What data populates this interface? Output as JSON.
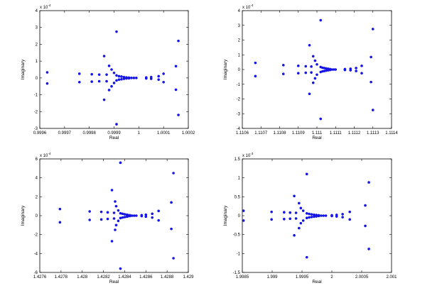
{
  "chart_data": [
    {
      "type": "scatter",
      "xlabel": "Real",
      "ylabel": "Imaginary",
      "y_multiplier": "x 10^-4",
      "xlim": [
        0.9996,
        1.0002
      ],
      "ylim": [
        -3,
        4
      ],
      "xticks": [
        "0.9996",
        "0.9997",
        "0.9998",
        "0.9999",
        "1",
        "1.0001",
        "1.0002"
      ],
      "yticks": [
        "-3",
        "-2",
        "-1",
        "0",
        "1",
        "2",
        "3",
        "4"
      ],
      "x_tick_values": [
        0.9996,
        0.9997,
        0.9998,
        0.9999,
        1.0,
        1.0001,
        1.0002
      ],
      "y_tick_values": [
        -3,
        -2,
        -1,
        0,
        1,
        2,
        3,
        4
      ],
      "points": [
        [
          0.99963,
          0.33
        ],
        [
          0.99963,
          -0.33
        ],
        [
          0.99976,
          0.25
        ],
        [
          0.99976,
          -0.25
        ],
        [
          0.99981,
          0.22
        ],
        [
          0.99981,
          -0.22
        ],
        [
          0.99984,
          0.2
        ],
        [
          0.99984,
          -0.2
        ],
        [
          0.99986,
          1.3
        ],
        [
          0.99986,
          -1.3
        ],
        [
          0.99987,
          0.2
        ],
        [
          0.99987,
          -0.2
        ],
        [
          0.99988,
          0.72
        ],
        [
          0.99988,
          -0.72
        ],
        [
          0.99989,
          0.5
        ],
        [
          0.99989,
          -0.5
        ],
        [
          0.9999,
          0.3
        ],
        [
          0.9999,
          -0.3
        ],
        [
          0.99991,
          2.75
        ],
        [
          0.99991,
          -2.75
        ],
        [
          0.99991,
          0.15
        ],
        [
          0.99991,
          -0.15
        ],
        [
          0.99992,
          0.1
        ],
        [
          0.99992,
          -0.1
        ],
        [
          0.99993,
          0.08
        ],
        [
          0.99993,
          -0.08
        ],
        [
          0.99994,
          0.05
        ],
        [
          0.99994,
          -0.05
        ],
        [
          0.99995,
          0.03
        ],
        [
          0.99995,
          -0.03
        ],
        [
          0.99996,
          0.02
        ],
        [
          0.99996,
          -0.02
        ],
        [
          0.99997,
          0.0
        ],
        [
          0.99998,
          0.0
        ],
        [
          0.99999,
          0.0
        ],
        [
          1.00003,
          0.03
        ],
        [
          1.00003,
          -0.03
        ],
        [
          1.00005,
          0.05
        ],
        [
          1.00005,
          -0.05
        ],
        [
          1.00008,
          0.1
        ],
        [
          1.00008,
          -0.1
        ],
        [
          1.0001,
          0.25
        ],
        [
          1.0001,
          -0.25
        ],
        [
          1.00015,
          0.7
        ],
        [
          1.00015,
          -0.7
        ],
        [
          1.00016,
          2.2
        ],
        [
          1.00016,
          -2.2
        ]
      ]
    },
    {
      "type": "scatter",
      "xlabel": "Real",
      "ylabel": "Imaginary",
      "y_multiplier": "x 10^-4",
      "xlim": [
        1.1106,
        1.1114
      ],
      "ylim": [
        -4,
        4
      ],
      "xticks": [
        "1.1106",
        "1.1107",
        "1.1108",
        "1.1109",
        "1.111",
        "1.1111",
        "1.1112",
        "1.1113",
        "1.1114"
      ],
      "yticks": [
        "-4",
        "-3",
        "-2",
        "-1",
        "0",
        "1",
        "2",
        "3",
        "4"
      ],
      "x_tick_values": [
        1.1106,
        1.1107,
        1.1108,
        1.1109,
        1.111,
        1.1111,
        1.1112,
        1.1113,
        1.1114
      ],
      "y_tick_values": [
        -4,
        -3,
        -2,
        -1,
        0,
        1,
        2,
        3,
        4
      ],
      "points": [
        [
          1.11067,
          0.45
        ],
        [
          1.11067,
          -0.45
        ],
        [
          1.11082,
          0.3
        ],
        [
          1.11082,
          -0.3
        ],
        [
          1.1109,
          0.25
        ],
        [
          1.1109,
          -0.25
        ],
        [
          1.11094,
          0.22
        ],
        [
          1.11094,
          -0.22
        ],
        [
          1.11096,
          1.65
        ],
        [
          1.11096,
          -1.65
        ],
        [
          1.11097,
          0.2
        ],
        [
          1.11097,
          -0.2
        ],
        [
          1.11098,
          0.9
        ],
        [
          1.11098,
          -0.9
        ],
        [
          1.11099,
          0.6
        ],
        [
          1.11099,
          -0.6
        ],
        [
          1.111,
          0.35
        ],
        [
          1.111,
          -0.35
        ],
        [
          1.11102,
          3.35
        ],
        [
          1.11102,
          -3.35
        ],
        [
          1.11102,
          0.17
        ],
        [
          1.11102,
          -0.17
        ],
        [
          1.11103,
          0.12
        ],
        [
          1.11103,
          -0.12
        ],
        [
          1.11104,
          0.1
        ],
        [
          1.11104,
          -0.1
        ],
        [
          1.11105,
          0.07
        ],
        [
          1.11105,
          -0.07
        ],
        [
          1.11106,
          0.05
        ],
        [
          1.11106,
          -0.05
        ],
        [
          1.11107,
          0.03
        ],
        [
          1.11107,
          -0.03
        ],
        [
          1.11108,
          0.0
        ],
        [
          1.11109,
          0.0
        ],
        [
          1.1111,
          0.0
        ],
        [
          1.11115,
          0.03
        ],
        [
          1.11115,
          -0.03
        ],
        [
          1.11118,
          0.05
        ],
        [
          1.11118,
          -0.05
        ],
        [
          1.11121,
          0.1
        ],
        [
          1.11121,
          -0.1
        ],
        [
          1.11124,
          0.25
        ],
        [
          1.11124,
          -0.25
        ],
        [
          1.11129,
          0.85
        ],
        [
          1.11129,
          -0.85
        ],
        [
          1.1113,
          2.75
        ],
        [
          1.1113,
          -2.75
        ]
      ]
    },
    {
      "type": "scatter",
      "xlabel": "Real",
      "ylabel": "Imaginary",
      "y_multiplier": "x 10^-4",
      "xlim": [
        1.4276,
        1.429
      ],
      "ylim": [
        -6,
        6
      ],
      "xticks": [
        "1.4276",
        "1.4278",
        "1.428",
        "1.4282",
        "1.4284",
        "1.4286",
        "1.4288",
        "1.429"
      ],
      "yticks": [
        "-6",
        "-4",
        "-2",
        "0",
        "2",
        "4",
        "6"
      ],
      "x_tick_values": [
        1.4276,
        1.4278,
        1.428,
        1.4282,
        1.4284,
        1.4286,
        1.4288,
        1.429
      ],
      "y_tick_values": [
        -6,
        -4,
        -2,
        0,
        2,
        4,
        6
      ],
      "points": [
        [
          1.42779,
          0.7
        ],
        [
          1.42779,
          -0.7
        ],
        [
          1.42807,
          0.45
        ],
        [
          1.42807,
          -0.45
        ],
        [
          1.42818,
          0.4
        ],
        [
          1.42818,
          -0.4
        ],
        [
          1.42824,
          0.35
        ],
        [
          1.42824,
          -0.35
        ],
        [
          1.42828,
          2.7
        ],
        [
          1.42828,
          -2.7
        ],
        [
          1.4283,
          0.3
        ],
        [
          1.4283,
          -0.3
        ],
        [
          1.42831,
          1.5
        ],
        [
          1.42831,
          -1.5
        ],
        [
          1.42832,
          1.0
        ],
        [
          1.42832,
          -1.0
        ],
        [
          1.42834,
          0.55
        ],
        [
          1.42834,
          -0.55
        ],
        [
          1.42836,
          5.6
        ],
        [
          1.42836,
          -5.6
        ],
        [
          1.42836,
          0.25
        ],
        [
          1.42836,
          -0.25
        ],
        [
          1.42838,
          0.2
        ],
        [
          1.42838,
          -0.2
        ],
        [
          1.4284,
          0.15
        ],
        [
          1.4284,
          -0.15
        ],
        [
          1.42842,
          0.1
        ],
        [
          1.42842,
          -0.1
        ],
        [
          1.42843,
          0.07
        ],
        [
          1.42843,
          -0.07
        ],
        [
          1.42845,
          0.04
        ],
        [
          1.42845,
          -0.04
        ],
        [
          1.42847,
          0.0
        ],
        [
          1.42849,
          0.0
        ],
        [
          1.42851,
          0.0
        ],
        [
          1.42856,
          0.05
        ],
        [
          1.42856,
          -0.05
        ],
        [
          1.4286,
          0.1
        ],
        [
          1.4286,
          -0.1
        ],
        [
          1.42866,
          0.2
        ],
        [
          1.42866,
          -0.2
        ],
        [
          1.42872,
          0.5
        ],
        [
          1.42872,
          -0.5
        ],
        [
          1.42884,
          1.4
        ],
        [
          1.42884,
          -1.4
        ],
        [
          1.42886,
          4.5
        ],
        [
          1.42886,
          -4.5
        ]
      ]
    },
    {
      "type": "scatter",
      "xlabel": "Real",
      "ylabel": "Imaginary",
      "y_multiplier": "x 10^-3",
      "xlim": [
        1.9985,
        2.001
      ],
      "ylim": [
        -1.5,
        1.5
      ],
      "xticks": [
        "1.9985",
        "1.999",
        "1.9995",
        "2",
        "2.0005",
        "2.001"
      ],
      "yticks": [
        "-1.5",
        "-1",
        "-0.5",
        "0",
        "0.5",
        "1",
        "1.5"
      ],
      "x_tick_values": [
        1.9985,
        1.999,
        1.9995,
        2.0,
        2.0005,
        2.001
      ],
      "y_tick_values": [
        -1.5,
        -1,
        -0.5,
        0,
        0.5,
        1,
        1.5
      ],
      "points": [
        [
          1.99852,
          0.13
        ],
        [
          1.99852,
          -0.13
        ],
        [
          1.99899,
          0.1
        ],
        [
          1.99899,
          -0.1
        ],
        [
          1.9992,
          0.09
        ],
        [
          1.9992,
          -0.09
        ],
        [
          1.9993,
          0.08
        ],
        [
          1.9993,
          -0.08
        ],
        [
          1.99937,
          0.52
        ],
        [
          1.99937,
          -0.52
        ],
        [
          1.9994,
          0.075
        ],
        [
          1.9994,
          -0.075
        ],
        [
          1.99945,
          0.33
        ],
        [
          1.99945,
          -0.33
        ],
        [
          1.99948,
          0.2
        ],
        [
          1.99948,
          -0.2
        ],
        [
          1.99952,
          0.13
        ],
        [
          1.99952,
          -0.13
        ],
        [
          1.99958,
          1.1
        ],
        [
          1.99958,
          -1.1
        ],
        [
          1.99958,
          0.06
        ],
        [
          1.99958,
          -0.06
        ],
        [
          1.99962,
          0.045
        ],
        [
          1.99962,
          -0.045
        ],
        [
          1.99966,
          0.035
        ],
        [
          1.99966,
          -0.035
        ],
        [
          1.9997,
          0.025
        ],
        [
          1.9997,
          -0.025
        ],
        [
          1.99974,
          0.018
        ],
        [
          1.99974,
          -0.018
        ],
        [
          1.99978,
          0.01
        ],
        [
          1.99978,
          -0.01
        ],
        [
          1.99982,
          0.0
        ],
        [
          1.99986,
          0.0
        ],
        [
          1.9999,
          0.0
        ],
        [
          2.0,
          0.01
        ],
        [
          2.0,
          -0.01
        ],
        [
          2.00008,
          0.02
        ],
        [
          2.00008,
          -0.02
        ],
        [
          2.00018,
          0.04
        ],
        [
          2.00018,
          -0.04
        ],
        [
          2.0003,
          0.1
        ],
        [
          2.0003,
          -0.1
        ],
        [
          2.00056,
          0.27
        ],
        [
          2.00056,
          -0.27
        ],
        [
          2.00062,
          0.88
        ],
        [
          2.00062,
          -0.88
        ]
      ]
    }
  ]
}
